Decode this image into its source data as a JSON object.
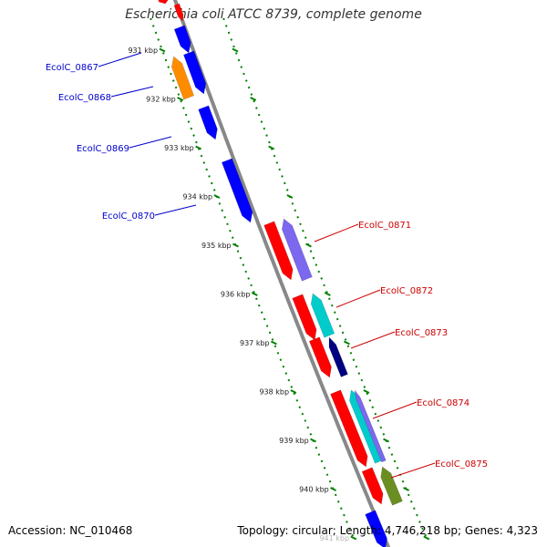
{
  "title": "Escherichia coli ATCC 8739, complete genome",
  "footer": {
    "accession": "Accession: NC_010468",
    "stats": "Topology: circular; Length: 4,746,218 bp; Genes: 4,323"
  },
  "colors": {
    "backbone": "#888888",
    "tick_green": "#008000",
    "forward_label": "#0000cc",
    "reverse_label": "#cc0000",
    "gene_blue": "#0000ff",
    "gene_orange": "#ff8c00",
    "gene_red": "#ff0000",
    "gene_purple": "#7b68ee",
    "gene_cyan": "#00cccc",
    "gene_navy": "#000080",
    "gene_olive": "#6b8e23"
  },
  "scale_labels": [
    "931 kbp",
    "932 kbp",
    "933 kbp",
    "934 kbp",
    "935 kbp",
    "936 kbp",
    "937 kbp",
    "938 kbp",
    "939 kbp",
    "940 kbp",
    "941 kbp"
  ],
  "forward_genes": [
    {
      "label": "EcolC_0867",
      "color": "#0000ff"
    },
    {
      "label": "EcolC_0868",
      "color": "#0000ff"
    },
    {
      "label": "EcolC_0869",
      "color": "#0000ff"
    },
    {
      "label": "EcolC_0870",
      "color": "#0000ff"
    }
  ],
  "reverse_genes": [
    {
      "label": "EcolC_0871",
      "color": "#ff0000"
    },
    {
      "label": "EcolC_0872",
      "color": "#ff0000"
    },
    {
      "label": "EcolC_0873",
      "color": "#ff0000"
    },
    {
      "label": "EcolC_0874",
      "color": "#ff0000"
    },
    {
      "label": "EcolC_0875",
      "color": "#ff0000"
    }
  ]
}
